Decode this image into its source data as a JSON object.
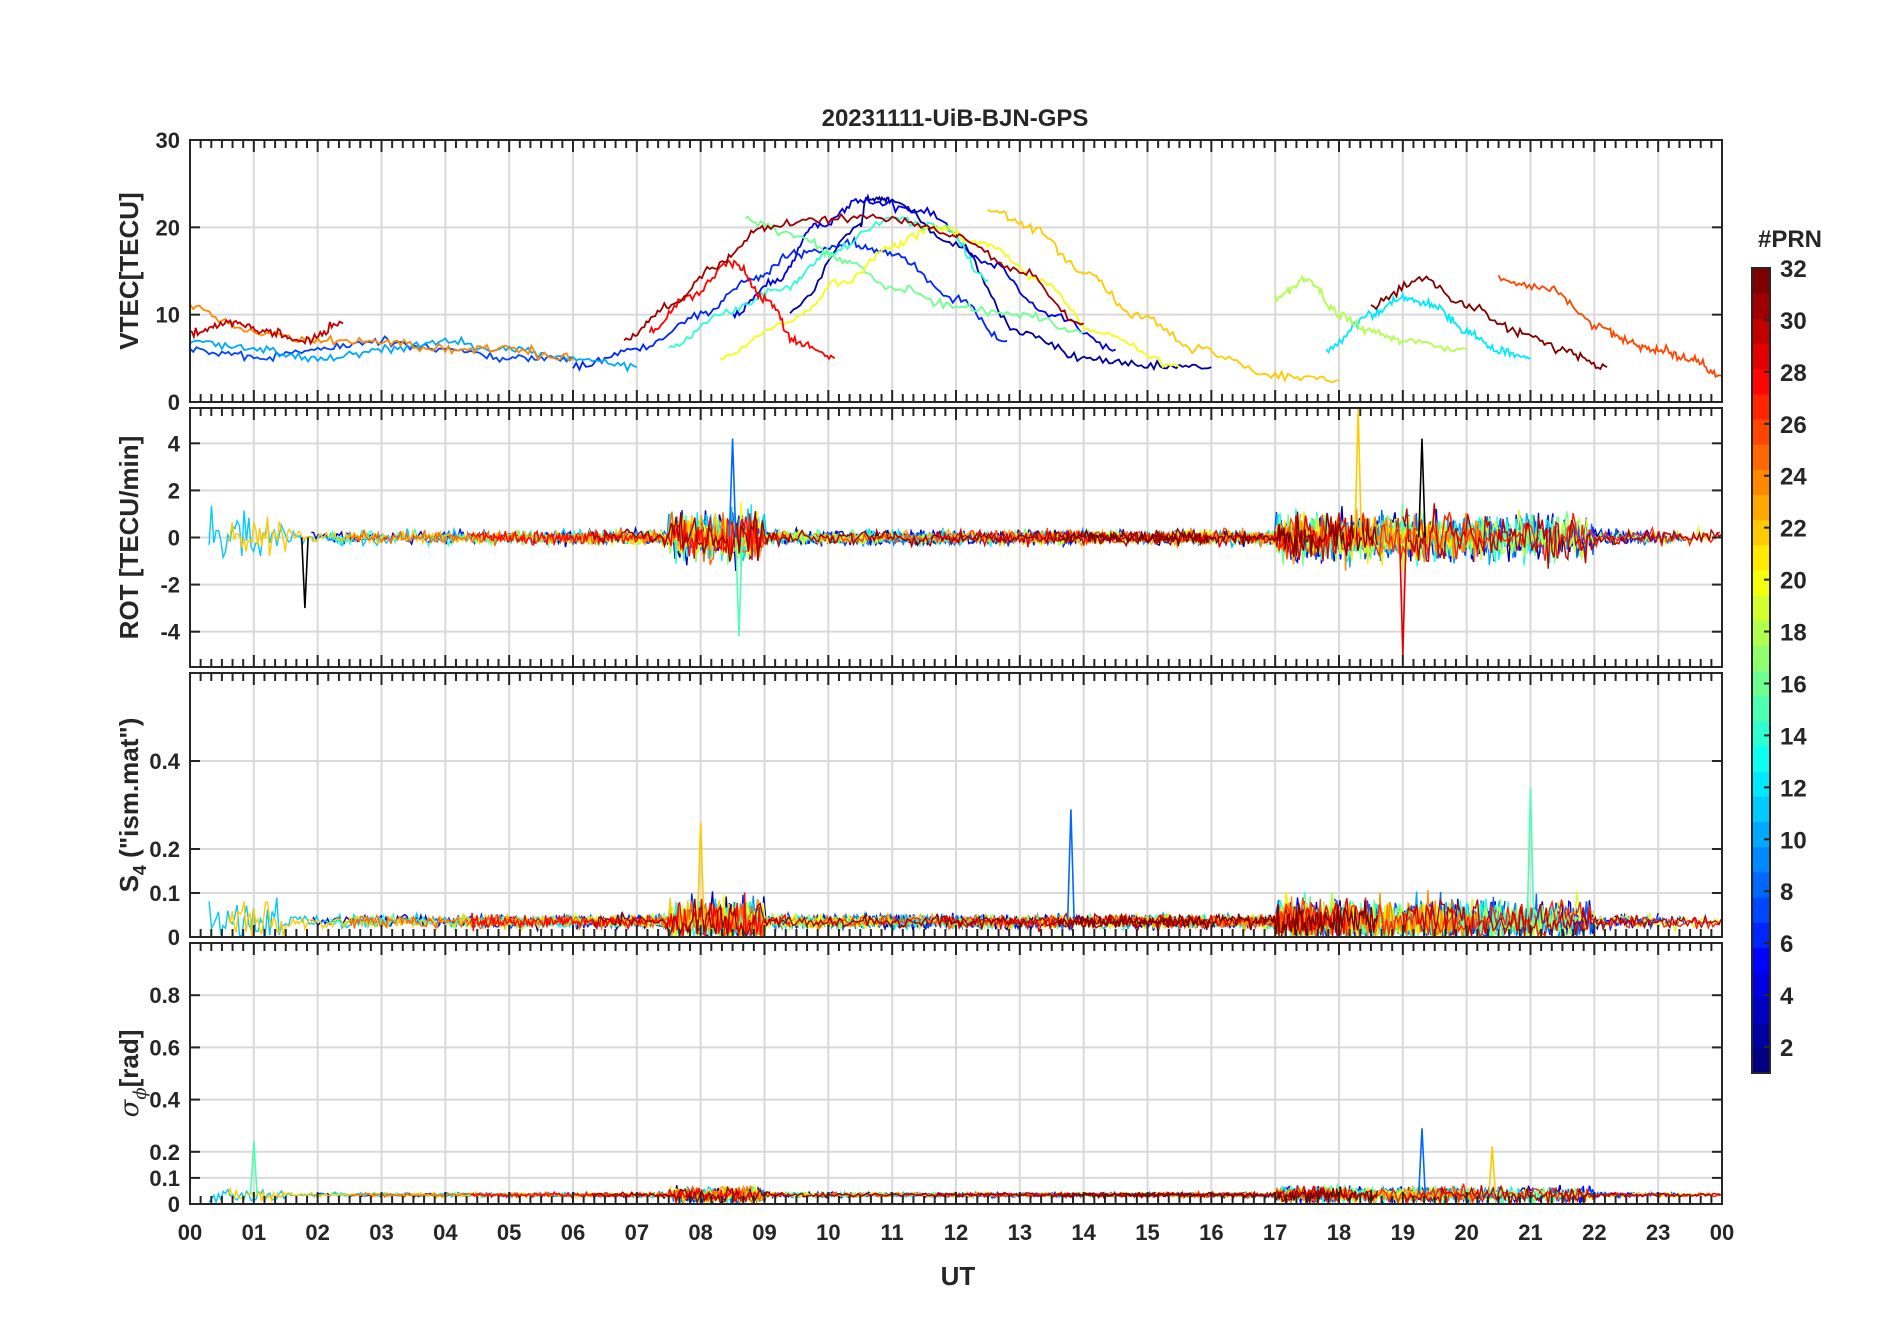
{
  "title": "20231111-UiB-BJN-GPS",
  "xlabel": "UT",
  "x_ticks": [
    "00",
    "01",
    "02",
    "03",
    "04",
    "05",
    "06",
    "07",
    "08",
    "09",
    "10",
    "11",
    "12",
    "13",
    "14",
    "15",
    "16",
    "17",
    "18",
    "19",
    "20",
    "21",
    "22",
    "23",
    "00"
  ],
  "colorbar": {
    "title": "#PRN",
    "range": [
      1,
      32
    ],
    "ticks": [
      "2",
      "4",
      "6",
      "8",
      "10",
      "12",
      "14",
      "16",
      "18",
      "20",
      "22",
      "24",
      "26",
      "28",
      "30",
      "32"
    ],
    "colormap": "jet",
    "colors": [
      "#00008f",
      "#0000ff",
      "#0080ff",
      "#00ffff",
      "#80ff80",
      "#ffff00",
      "#ff8000",
      "#ff0000",
      "#800000"
    ]
  },
  "panels": [
    {
      "ylabel": "VTEC[TECU]",
      "ylim": [
        0,
        30
      ],
      "yticks": [
        "0",
        "10",
        "20",
        "30"
      ],
      "grid": true
    },
    {
      "ylabel": "ROT [TECU/min]",
      "ylim": [
        -5.5,
        5.5
      ],
      "yticks": [
        "-4",
        "-2",
        "0",
        "2",
        "4"
      ],
      "grid": true
    },
    {
      "ylabel_main": "S",
      "ylabel_sub": "4",
      "ylabel_rest": " (\"ism.mat\")",
      "ylim": [
        0,
        0.6
      ],
      "yticks": [
        "0",
        "0.1",
        "0.2",
        "0.4"
      ],
      "grid": true
    },
    {
      "ylabel_main": "σ",
      "ylabel_sub": "ϕ",
      "ylabel_rest": "[rad]",
      "ylim": [
        0,
        1
      ],
      "yticks": [
        "0",
        "0.1",
        "0.2",
        "0.4",
        "0.6",
        "0.8"
      ],
      "grid": true
    }
  ],
  "chart_data": {
    "type": "line",
    "title": "20231111-UiB-BJN-GPS",
    "xlabel": "UT",
    "x_range_hours": [
      0,
      24
    ],
    "color_by": "#PRN",
    "series": [
      {
        "prn": 2,
        "vtec": [
          [
            9.4,
            10.5
          ],
          [
            10.5,
            20
          ],
          [
            10.6,
            23.5
          ],
          [
            11,
            23
          ],
          [
            12,
            18
          ],
          [
            13,
            8
          ],
          [
            14,
            5
          ],
          [
            15,
            4
          ],
          [
            16,
            4
          ]
        ]
      },
      {
        "prn": 4,
        "vtec": [
          [
            8.5,
            10
          ],
          [
            9.2,
            14
          ],
          [
            9.8,
            20
          ],
          [
            10.5,
            23
          ],
          [
            11.5,
            22
          ],
          [
            12.5,
            16
          ],
          [
            13.5,
            10
          ],
          [
            14.5,
            6
          ]
        ]
      },
      {
        "prn": 6,
        "vtec": [
          [
            6,
            4
          ],
          [
            7,
            6
          ],
          [
            8,
            10
          ],
          [
            8.8,
            14
          ],
          [
            9.5,
            17
          ],
          [
            10.3,
            18
          ],
          [
            11,
            17
          ],
          [
            12,
            12
          ],
          [
            12.8,
            7
          ]
        ]
      },
      {
        "prn": 7,
        "vtec": [
          [
            0,
            6
          ],
          [
            1,
            5
          ],
          [
            2,
            6
          ],
          [
            3,
            7
          ],
          [
            4,
            6
          ],
          [
            5,
            5
          ],
          [
            6,
            5
          ]
        ]
      },
      {
        "prn": 10,
        "vtec": [
          [
            0,
            7
          ],
          [
            1,
            6
          ],
          [
            2,
            5
          ],
          [
            3,
            6
          ],
          [
            4,
            7
          ],
          [
            5,
            6
          ],
          [
            6,
            5
          ],
          [
            7,
            4
          ]
        ]
      },
      {
        "prn": 12,
        "vtec": [
          [
            17.8,
            6
          ],
          [
            18.5,
            10
          ],
          [
            19,
            12
          ],
          [
            19.5,
            11
          ],
          [
            20,
            8
          ],
          [
            20.5,
            6
          ],
          [
            21,
            5
          ]
        ]
      },
      {
        "prn": 14,
        "vtec": [
          [
            7.5,
            6
          ],
          [
            8.3,
            10
          ],
          [
            9.3,
            13
          ],
          [
            10,
            17
          ],
          [
            11,
            21
          ],
          [
            11.8,
            20
          ],
          [
            12.5,
            14
          ]
        ]
      },
      {
        "prn": 16,
        "vtec": [
          [
            8.7,
            21
          ],
          [
            9.5,
            19
          ],
          [
            10.3,
            16
          ],
          [
            11,
            13
          ],
          [
            12,
            11
          ],
          [
            13,
            10
          ],
          [
            14,
            8
          ]
        ]
      },
      {
        "prn": 18,
        "vtec": [
          [
            17,
            12
          ],
          [
            17.5,
            14
          ],
          [
            18,
            10
          ],
          [
            18.5,
            8
          ],
          [
            19,
            7
          ],
          [
            20,
            6
          ]
        ]
      },
      {
        "prn": 20,
        "vtec": [
          [
            8.3,
            5
          ],
          [
            9.3,
            9
          ],
          [
            10.3,
            14
          ],
          [
            11,
            18
          ],
          [
            11.7,
            20
          ],
          [
            12.5,
            18
          ],
          [
            13.3,
            14
          ],
          [
            14.2,
            8
          ],
          [
            15.5,
            4
          ]
        ]
      },
      {
        "prn": 22,
        "vtec": [
          [
            12.5,
            22
          ],
          [
            13.2,
            20
          ],
          [
            14,
            15
          ],
          [
            14.8,
            10
          ],
          [
            15.8,
            6
          ],
          [
            17,
            3
          ],
          [
            18,
            2.5
          ]
        ]
      },
      {
        "prn": 24,
        "vtec": [
          [
            0,
            11
          ],
          [
            1,
            8
          ],
          [
            2,
            7
          ],
          [
            3,
            7
          ],
          [
            4,
            6
          ],
          [
            5,
            6
          ],
          [
            6,
            5
          ]
        ]
      },
      {
        "prn": 26,
        "vtec": [
          [
            20.5,
            14
          ],
          [
            21.3,
            13
          ],
          [
            22,
            9
          ],
          [
            22.5,
            7
          ],
          [
            23,
            6
          ],
          [
            23.5,
            5
          ],
          [
            24,
            3
          ]
        ]
      },
      {
        "prn": 28,
        "vtec": [
          [
            7.2,
            8
          ],
          [
            7.8,
            12
          ],
          [
            8.5,
            16
          ],
          [
            9,
            12
          ],
          [
            9.5,
            7
          ],
          [
            10.1,
            5
          ]
        ]
      },
      {
        "prn": 30,
        "vtec": [
          [
            0,
            8
          ],
          [
            0.6,
            9
          ],
          [
            1.2,
            8
          ],
          [
            1.8,
            7
          ],
          [
            2.4,
            9
          ]
        ]
      },
      {
        "prn": 31,
        "vtec": [
          [
            6.8,
            7
          ],
          [
            7.5,
            11
          ],
          [
            8.3,
            16
          ],
          [
            9,
            20
          ],
          [
            10,
            21
          ],
          [
            11,
            21
          ],
          [
            12,
            19
          ],
          [
            13,
            15
          ],
          [
            14,
            9
          ]
        ]
      },
      {
        "prn": 32,
        "vtec": [
          [
            18.5,
            11
          ],
          [
            19.3,
            14
          ],
          [
            20,
            11
          ],
          [
            20.8,
            8
          ],
          [
            21.5,
            6
          ],
          [
            22.2,
            4
          ]
        ]
      }
    ],
    "summary": {
      "vtec_range_tecu": [
        1,
        24
      ],
      "rot_range_tecu_per_min": [
        -5,
        5.5
      ],
      "s4_typical": 0.05,
      "s4_peaks": [
        {
          "t": 13.8,
          "s4": 0.29
        },
        {
          "t": 21.0,
          "s4": 0.34
        },
        {
          "t": 8.0,
          "s4": 0.26
        }
      ],
      "sigma_phi_typical": 0.04,
      "sigma_phi_peaks": [
        {
          "t": 19.3,
          "sigma": 0.29
        },
        {
          "t": 1.0,
          "sigma": 0.24
        },
        {
          "t": 20.4,
          "sigma": 0.22
        }
      ]
    }
  }
}
